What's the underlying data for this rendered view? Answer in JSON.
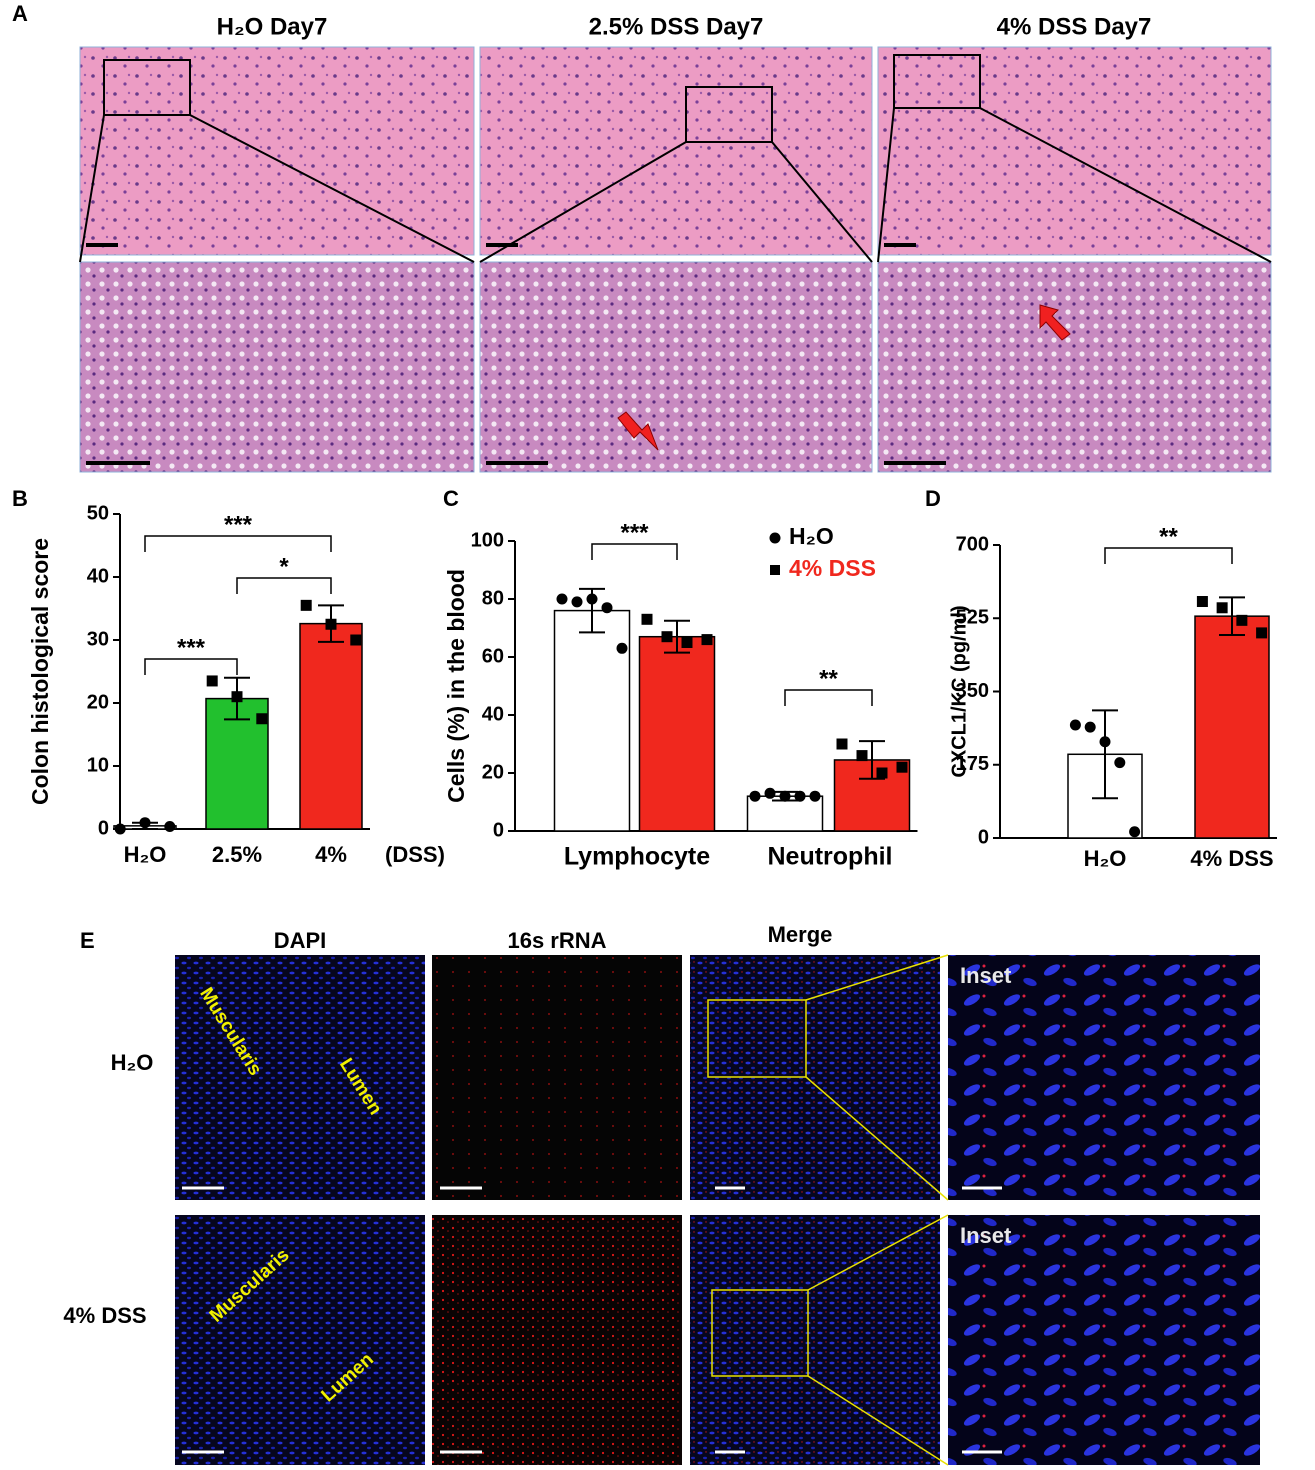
{
  "figure": {
    "panel_labels": [
      "A",
      "B",
      "C",
      "D",
      "E"
    ],
    "panel_a": {
      "titles": [
        "H₂O  Day7",
        "2.5% DSS Day7",
        "4% DSS  Day7"
      ]
    },
    "panel_e": {
      "columns": [
        "DAPI",
        "16s rRNA",
        "Merge"
      ],
      "inset_labels": [
        "Inset",
        "Inset"
      ],
      "rows": [
        "H₂O",
        "4% DSS"
      ],
      "region_labels": [
        [
          "Muscularis",
          "Lumen"
        ],
        [
          "Muscularis",
          "Lumen"
        ]
      ]
    }
  },
  "chart_data": [
    {
      "type": "bar",
      "ylabel": "Colon histological score",
      "xlabel": "(DSS)",
      "categories": [
        "H₂O",
        "2.5%",
        "4%"
      ],
      "values": [
        0.5,
        20.7,
        32.6
      ],
      "errors": [
        0.5,
        3.3,
        2.9
      ],
      "colors": [
        "#ffffff",
        "#22c02e",
        "#f0281e"
      ],
      "markers": [
        "circle",
        "square",
        "square"
      ],
      "points": [
        [
          0,
          1,
          0.4
        ],
        [
          23.5,
          21,
          17.5
        ],
        [
          35.5,
          32.5,
          30
        ]
      ],
      "ylim": [
        0,
        50
      ],
      "yticks": [
        0,
        10,
        20,
        30,
        40,
        50
      ],
      "annotations": [
        "***",
        "*",
        "***"
      ]
    },
    {
      "type": "bar",
      "ylabel": "Cells (%) in the blood",
      "categories": [
        "Lymphocyte",
        "Neutrophil"
      ],
      "series": [
        {
          "name": "H₂O",
          "color": "#ffffff",
          "marker": "circle",
          "values": [
            76,
            12
          ],
          "errors": [
            7.5,
            1.5
          ],
          "points": [
            [
              80,
              79,
              80,
              77,
              63
            ],
            [
              12,
              13,
              12,
              12,
              12
            ]
          ]
        },
        {
          "name": "4% DSS",
          "color": "#f0281e",
          "marker": "square",
          "values": [
            67,
            24.5
          ],
          "errors": [
            5.5,
            6.5
          ],
          "points": [
            [
              73,
              67,
              65,
              66
            ],
            [
              30,
              26,
              20,
              22
            ]
          ]
        }
      ],
      "ylim": [
        0,
        100
      ],
      "yticks": [
        0,
        20,
        40,
        60,
        80,
        100
      ],
      "annotations": [
        "***",
        "**"
      ]
    },
    {
      "type": "bar",
      "ylabel": "CXCL1/KC (pg/ml)",
      "categories": [
        "H₂O",
        "4% DSS"
      ],
      "values": [
        200,
        530
      ],
      "errors": [
        105,
        45
      ],
      "colors": [
        "#ffffff",
        "#f0281e"
      ],
      "markers": [
        "circle",
        "square"
      ],
      "points": [
        [
          270,
          265,
          230,
          180,
          15
        ],
        [
          565,
          550,
          520,
          490
        ]
      ],
      "ylim": [
        0,
        700
      ],
      "yticks": [
        0,
        175,
        350,
        525,
        700
      ],
      "annotations": [
        "**"
      ]
    }
  ]
}
